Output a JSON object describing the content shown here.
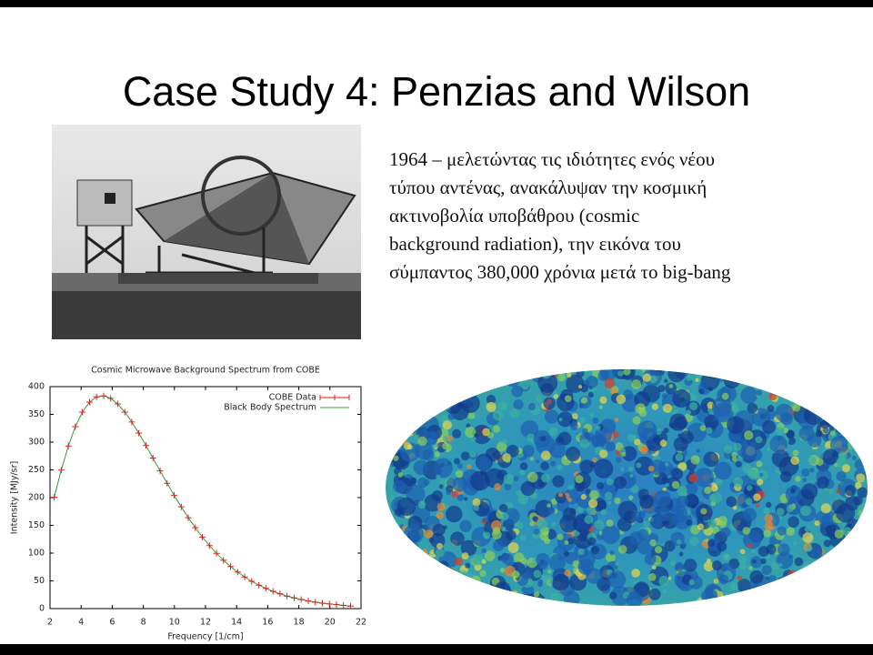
{
  "slide": {
    "title": "Case Study 4: Penzias and Wilson",
    "body_lines": [
      "1964 – μελετώντας τις ιδιότητες ενός νέου",
      "τύπου αντένας, ανακάλυψαν  την  κοσμική",
      "ακτινοβολία  υποβάθρου (cosmic",
      "background radiation), την εικόνα του",
      "σύμπαντος 380,000 χρόνια μετά το big-bang"
    ]
  },
  "chart_data": {
    "type": "line",
    "title": "Cosmic Microwave Background Spectrum from COBE",
    "x_label": "Frequency [1/cm]",
    "y_label": "Intensity [MJy/sr]",
    "x": [
      2.27,
      2.72,
      3.18,
      3.63,
      4.08,
      4.54,
      4.99,
      5.45,
      5.9,
      6.35,
      6.81,
      7.26,
      7.71,
      8.17,
      8.62,
      9.08,
      9.53,
      9.98,
      10.44,
      10.89,
      11.34,
      11.8,
      12.25,
      12.71,
      13.16,
      13.61,
      14.07,
      14.52,
      14.97,
      15.43,
      15.88,
      16.34,
      16.79,
      17.24,
      17.7,
      18.15,
      18.61,
      19.06,
      19.51,
      19.97,
      20.42,
      20.87,
      21.33
    ],
    "series": [
      {
        "name": "COBE Data",
        "color": "#d62020",
        "marker": "cross",
        "values": [
          200.7,
          249.5,
          293.0,
          327.8,
          354.1,
          372.1,
          381.5,
          383.5,
          378.9,
          368.8,
          354.1,
          336.3,
          316.1,
          293.9,
          271.4,
          248.2,
          225.9,
          204.3,
          183.3,
          163.8,
          145.8,
          128.8,
          113.6,
          99.5,
          87.0,
          75.9,
          65.8,
          57.0,
          49.2,
          42.3,
          36.4,
          31.1,
          26.6,
          22.6,
          19.3,
          16.4,
          13.8,
          11.7,
          9.9,
          8.4,
          7.1,
          5.8,
          4.5
        ]
      },
      {
        "name": "Black Body Spectrum",
        "color": "#3a9a3a",
        "marker": "line",
        "values": [
          200.7,
          249.5,
          293.0,
          327.8,
          354.1,
          372.1,
          381.5,
          383.5,
          378.9,
          368.8,
          354.1,
          336.3,
          316.1,
          293.9,
          271.4,
          248.2,
          225.9,
          204.3,
          183.3,
          163.8,
          145.8,
          128.8,
          113.6,
          99.5,
          87.0,
          75.9,
          65.8,
          57.0,
          49.2,
          42.3,
          36.4,
          31.1,
          26.6,
          22.6,
          19.3,
          16.4,
          13.8,
          11.7,
          9.9,
          8.4,
          7.1,
          5.8,
          4.5
        ]
      }
    ],
    "xlim": [
      2,
      22
    ],
    "xticks": [
      2,
      4,
      6,
      8,
      10,
      12,
      14,
      16,
      18,
      20,
      22
    ],
    "ylim": [
      0,
      400
    ],
    "yticks": [
      0,
      50,
      100,
      150,
      200,
      250,
      300,
      350,
      400
    ],
    "legend": "upper right"
  }
}
